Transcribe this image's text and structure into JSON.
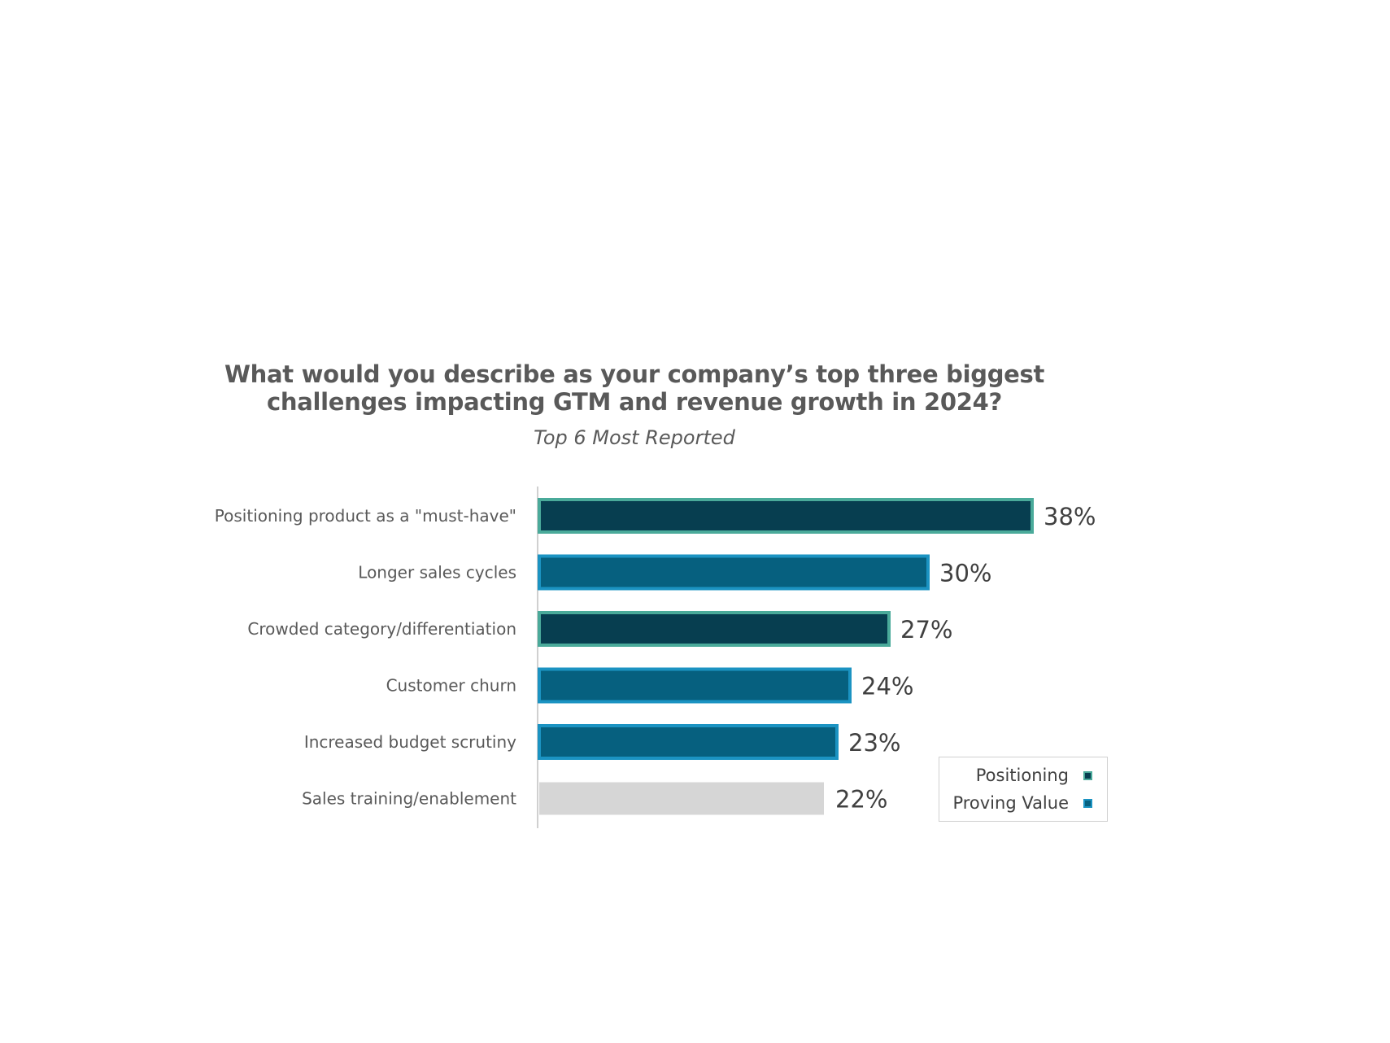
{
  "chart_data": {
    "type": "bar",
    "orientation": "horizontal",
    "title_lines": [
      "What would you describe as your company’s top three biggest",
      "challenges impacting GTM and revenue growth in 2024?"
    ],
    "subtitle": "Top 6 Most Reported",
    "categories": [
      "Positioning product as a \"must-have\"",
      "Longer sales cycles",
      "Crowded category/differentiation",
      "Customer churn",
      "Increased budget scrutiny",
      "Sales training/enablement"
    ],
    "values": [
      38,
      30,
      27,
      24,
      23,
      22
    ],
    "value_labels": [
      "38%",
      "30%",
      "27%",
      "24%",
      "23%",
      "22%"
    ],
    "bar_groups": [
      "Positioning",
      "Proving Value",
      "Positioning",
      "Proving Value",
      "Proving Value",
      ""
    ],
    "xlim": [
      0,
      40
    ],
    "grid": false,
    "legend": {
      "placement": "bottom-right",
      "entries": [
        {
          "label": "Positioning",
          "fill": "#073e50",
          "border": "#4aaa9a"
        },
        {
          "label": "Proving Value",
          "fill": "#06607f",
          "border": "#1b93c2"
        }
      ]
    },
    "colors": {
      "positioning_fill": "#073e50",
      "positioning_border": "#4aaa9a",
      "proving_fill": "#06607f",
      "proving_border": "#1b93c2",
      "other_fill": "#d6d6d6",
      "axis": "#d0d0d0"
    }
  }
}
